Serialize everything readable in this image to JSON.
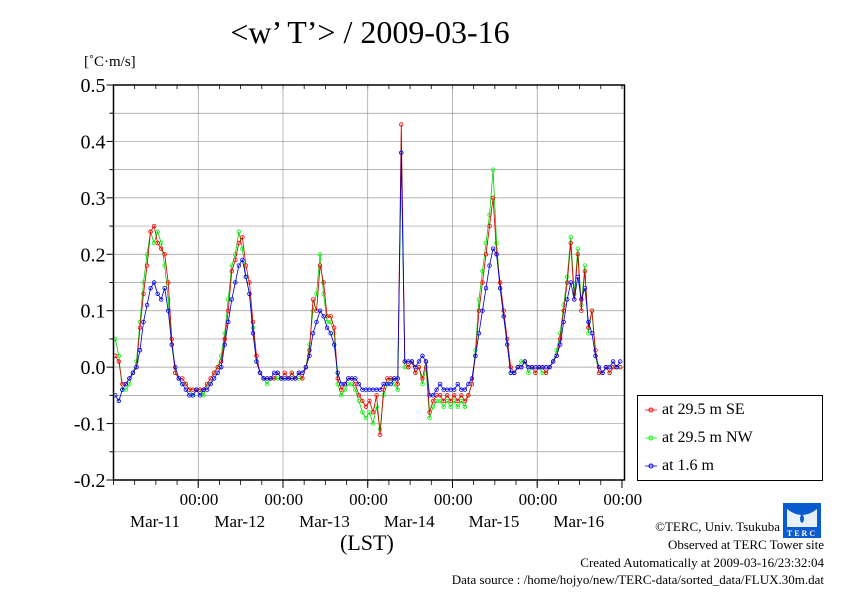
{
  "chart_data": {
    "type": "line",
    "title": "<w’ T’> / 2009-03-16",
    "ylabel": "[˚C·m/s]",
    "xlabel": "(LST)",
    "ylim": [
      -0.2,
      0.5
    ],
    "yticks": [
      "0.5",
      "0.4",
      "0.3",
      "0.2",
      "0.1",
      "0.0",
      "-0.1",
      "-0.2"
    ],
    "xlim_hours": [
      0,
      144
    ],
    "xticks": [
      {
        "hour": 24,
        "time": "00:00",
        "date": "Mar-11"
      },
      {
        "hour": 48,
        "time": "00:00",
        "date": "Mar-12"
      },
      {
        "hour": 72,
        "time": "00:00",
        "date": "Mar-13"
      },
      {
        "hour": 96,
        "time": "00:00",
        "date": "Mar-14"
      },
      {
        "hour": 120,
        "time": "00:00",
        "date": "Mar-15"
      },
      {
        "hour": 144,
        "time": "00:00",
        "date": "Mar-16"
      }
    ],
    "grid": true,
    "legend_position": "right",
    "series": [
      {
        "name": "at 29.5 m NW",
        "color": "#00ff00",
        "values": [
          0.05,
          0.02,
          -0.04,
          -0.04,
          -0.03,
          -0.01,
          0.01,
          0.08,
          0.15,
          0.2,
          0.24,
          0.22,
          0.24,
          0.22,
          0.18,
          0.12,
          0.04,
          -0.01,
          -0.02,
          -0.03,
          -0.03,
          -0.04,
          -0.05,
          -0.04,
          -0.04,
          -0.05,
          -0.03,
          -0.03,
          -0.01,
          0.0,
          0.02,
          0.06,
          0.12,
          0.18,
          0.2,
          0.24,
          0.21,
          0.16,
          0.13,
          0.07,
          0.01,
          -0.01,
          -0.02,
          -0.03,
          -0.02,
          -0.02,
          -0.02,
          -0.02,
          -0.02,
          -0.02,
          -0.01,
          -0.02,
          -0.02,
          -0.02,
          0.0,
          0.04,
          0.1,
          0.13,
          0.2,
          0.13,
          0.08,
          0.08,
          0.06,
          -0.03,
          -0.05,
          -0.04,
          -0.03,
          -0.03,
          -0.04,
          -0.06,
          -0.08,
          -0.09,
          -0.08,
          -0.1,
          -0.07,
          -0.11,
          -0.05,
          -0.03,
          -0.02,
          -0.03,
          -0.04,
          0.38,
          0.0,
          0.0,
          0.01,
          -0.01,
          0.0,
          -0.03,
          0.0,
          -0.09,
          -0.07,
          -0.06,
          -0.06,
          -0.07,
          -0.06,
          -0.07,
          -0.06,
          -0.07,
          -0.06,
          -0.07,
          -0.05,
          -0.03,
          0.03,
          0.12,
          0.17,
          0.22,
          0.27,
          0.35,
          0.22,
          0.14,
          0.09,
          0.04,
          -0.01,
          -0.01,
          0.0,
          0.01,
          0.01,
          -0.01,
          0.0,
          -0.01,
          0.0,
          -0.01,
          -0.01,
          0.0,
          0.01,
          0.03,
          0.06,
          0.11,
          0.16,
          0.23,
          0.13,
          0.21,
          0.11,
          0.18,
          0.06,
          0.1,
          0.02,
          -0.01,
          -0.01,
          0.0,
          -0.01,
          0.0,
          0.0,
          0.0
        ]
      },
      {
        "name": "at 29.5 m SE",
        "color": "#ff0000",
        "values": [
          0.02,
          0.01,
          -0.03,
          -0.03,
          -0.02,
          -0.01,
          0.0,
          0.07,
          0.13,
          0.18,
          0.24,
          0.25,
          0.22,
          0.21,
          0.2,
          0.15,
          0.05,
          -0.01,
          -0.02,
          -0.02,
          -0.03,
          -0.04,
          -0.04,
          -0.04,
          -0.04,
          -0.04,
          -0.03,
          -0.02,
          -0.01,
          0.0,
          0.01,
          0.05,
          0.1,
          0.17,
          0.19,
          0.22,
          0.23,
          0.18,
          0.15,
          0.08,
          0.02,
          -0.01,
          -0.02,
          -0.02,
          -0.02,
          -0.02,
          -0.01,
          -0.02,
          -0.01,
          -0.02,
          -0.01,
          -0.02,
          -0.01,
          -0.02,
          0.0,
          0.03,
          0.12,
          0.1,
          0.18,
          0.15,
          0.09,
          0.09,
          0.07,
          -0.02,
          -0.04,
          -0.03,
          -0.02,
          -0.02,
          -0.03,
          -0.05,
          -0.06,
          -0.07,
          -0.06,
          -0.08,
          -0.05,
          -0.12,
          -0.04,
          -0.02,
          -0.02,
          -0.02,
          -0.03,
          0.43,
          0.01,
          0.0,
          0.01,
          -0.01,
          0.0,
          -0.02,
          0.01,
          -0.08,
          -0.06,
          -0.05,
          -0.05,
          -0.06,
          -0.05,
          -0.06,
          -0.05,
          -0.06,
          -0.05,
          -0.06,
          -0.05,
          -0.03,
          0.02,
          0.1,
          0.15,
          0.2,
          0.25,
          0.3,
          0.2,
          0.15,
          0.1,
          0.05,
          0.0,
          -0.01,
          0.0,
          0.0,
          0.01,
          0.0,
          0.0,
          -0.01,
          0.0,
          0.0,
          -0.01,
          0.0,
          0.01,
          0.02,
          0.05,
          0.1,
          0.15,
          0.22,
          0.12,
          0.2,
          0.1,
          0.17,
          0.07,
          0.1,
          0.03,
          -0.01,
          -0.01,
          0.0,
          -0.01,
          0.0,
          0.0,
          0.0
        ]
      },
      {
        "name": "at 1.6 m",
        "color": "#0000ff",
        "values": [
          -0.05,
          -0.06,
          -0.04,
          -0.03,
          -0.02,
          -0.01,
          0.0,
          0.03,
          0.08,
          0.11,
          0.14,
          0.15,
          0.13,
          0.12,
          0.14,
          0.1,
          0.04,
          0.0,
          -0.02,
          -0.03,
          -0.04,
          -0.05,
          -0.05,
          -0.04,
          -0.05,
          -0.04,
          -0.04,
          -0.03,
          -0.02,
          -0.01,
          0.0,
          0.04,
          0.08,
          0.12,
          0.15,
          0.18,
          0.19,
          0.16,
          0.13,
          0.06,
          0.01,
          -0.01,
          -0.02,
          -0.02,
          -0.02,
          -0.01,
          -0.01,
          -0.02,
          -0.02,
          -0.02,
          -0.02,
          -0.02,
          -0.01,
          -0.01,
          0.0,
          0.02,
          0.06,
          0.08,
          0.1,
          0.09,
          0.07,
          0.06,
          0.04,
          -0.01,
          -0.03,
          -0.03,
          -0.02,
          -0.02,
          -0.02,
          -0.03,
          -0.04,
          -0.04,
          -0.04,
          -0.04,
          -0.04,
          -0.04,
          -0.03,
          -0.03,
          -0.03,
          -0.02,
          -0.02,
          0.38,
          0.01,
          0.01,
          0.01,
          0.0,
          0.01,
          0.02,
          0.01,
          -0.05,
          -0.05,
          -0.04,
          -0.03,
          -0.04,
          -0.04,
          -0.04,
          -0.04,
          -0.03,
          -0.04,
          -0.04,
          -0.03,
          -0.02,
          0.02,
          0.06,
          0.1,
          0.14,
          0.18,
          0.21,
          0.2,
          0.14,
          0.09,
          0.04,
          -0.01,
          -0.01,
          0.0,
          0.0,
          0.01,
          0.0,
          0.0,
          0.0,
          0.0,
          0.0,
          0.0,
          0.0,
          0.01,
          0.02,
          0.04,
          0.08,
          0.12,
          0.15,
          0.12,
          0.16,
          0.12,
          0.14,
          0.08,
          0.06,
          0.02,
          0.0,
          -0.01,
          0.0,
          0.0,
          0.01,
          0.0,
          0.01
        ]
      }
    ],
    "legend": [
      "at 29.5 m SE",
      "at 29.5 m NW",
      "at 1.6 m"
    ],
    "legend_colors": [
      "#ff0000",
      "#00ff00",
      "#0000ff"
    ]
  },
  "footer": {
    "copyright": "©TERC, Univ. Tsukuba",
    "observed": "Observed at TERC Tower site",
    "created": "Created Automatically at 2009-03-16/23:32:04",
    "source": "Data source : /home/hojyo/new/TERC-data/sorted_data/FLUX.30m.dat",
    "logo_text": "TERC"
  }
}
